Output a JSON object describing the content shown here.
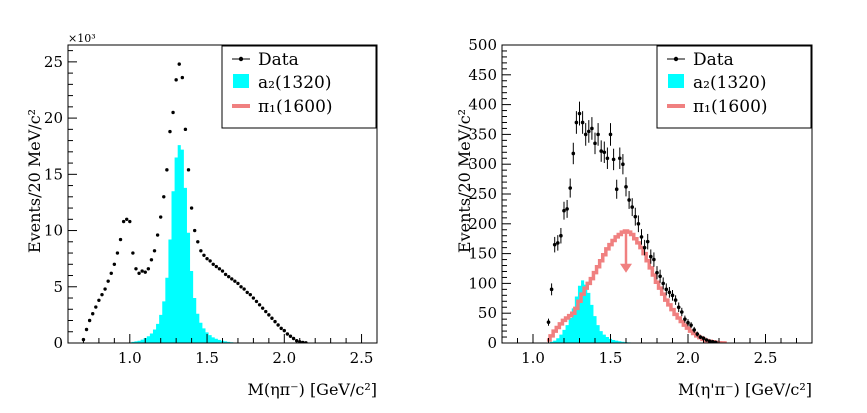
{
  "chart_data": [
    {
      "type": "scatter",
      "xlabel": "M(ηπ⁻) [GeV/c²]",
      "ylabel": "Events/20 MeV/c²",
      "y_multiplier": "×10³",
      "xlim": [
        0.6,
        2.6
      ],
      "ylim": [
        0,
        26.5
      ],
      "x_ticks": [
        "1.0",
        "1.5",
        "2.0",
        "2.5"
      ],
      "y_ticks": [
        "0",
        "5",
        "10",
        "15",
        "20",
        "25"
      ],
      "legend_position": "top-right",
      "legend": {
        "data": "Data",
        "a2": "a₂(1320)",
        "pi1": "π₁(1600)"
      },
      "colors": {
        "data": "#000000",
        "a2": "#00ffff",
        "pi1": "#f08080"
      },
      "series": [
        {
          "name": "Data",
          "style": "points",
          "x": [
            0.7,
            0.72,
            0.74,
            0.76,
            0.78,
            0.8,
            0.82,
            0.84,
            0.86,
            0.88,
            0.9,
            0.92,
            0.94,
            0.96,
            0.98,
            1.0,
            1.02,
            1.04,
            1.06,
            1.08,
            1.1,
            1.12,
            1.14,
            1.16,
            1.18,
            1.2,
            1.22,
            1.24,
            1.26,
            1.28,
            1.3,
            1.32,
            1.34,
            1.36,
            1.38,
            1.4,
            1.42,
            1.44,
            1.46,
            1.48,
            1.5,
            1.52,
            1.54,
            1.56,
            1.58,
            1.6,
            1.62,
            1.64,
            1.66,
            1.68,
            1.7,
            1.72,
            1.74,
            1.76,
            1.78,
            1.8,
            1.82,
            1.84,
            1.86,
            1.88,
            1.9,
            1.92,
            1.94,
            1.96,
            1.98,
            2.0,
            2.02,
            2.04,
            2.06,
            2.08,
            2.1,
            2.12,
            2.14,
            2.16,
            2.18,
            2.2,
            2.22,
            2.24,
            2.26,
            2.28,
            2.3
          ],
          "y": [
            0.3,
            1.2,
            2.0,
            2.6,
            3.2,
            3.8,
            4.3,
            4.8,
            5.5,
            6.2,
            7.0,
            8.0,
            9.2,
            10.8,
            11.0,
            10.8,
            8.0,
            6.6,
            6.2,
            6.4,
            6.3,
            6.6,
            7.4,
            8.2,
            9.6,
            11.2,
            13.0,
            15.4,
            18.8,
            20.5,
            23.4,
            24.8,
            23.6,
            19.0,
            15.4,
            12.0,
            10.0,
            9.0,
            8.2,
            7.8,
            7.5,
            7.3,
            7.0,
            6.8,
            6.6,
            6.4,
            6.1,
            5.9,
            5.7,
            5.5,
            5.3,
            5.0,
            4.8,
            4.5,
            4.3,
            4.0,
            3.7,
            3.4,
            3.1,
            2.8,
            2.5,
            2.2,
            1.9,
            1.6,
            1.3,
            1.1,
            0.8,
            0.6,
            0.4,
            0.2,
            0.1,
            0.05,
            0.02,
            0.0,
            0.0,
            0.0,
            0.0,
            0.0,
            0.0,
            0.0,
            0.0
          ]
        },
        {
          "name": "a₂(1320)",
          "style": "filled-histogram",
          "x": [
            1.0,
            1.02,
            1.04,
            1.06,
            1.08,
            1.1,
            1.12,
            1.14,
            1.16,
            1.18,
            1.2,
            1.22,
            1.24,
            1.26,
            1.28,
            1.3,
            1.32,
            1.34,
            1.36,
            1.38,
            1.4,
            1.42,
            1.44,
            1.46,
            1.48,
            1.5,
            1.52,
            1.54,
            1.56,
            1.58,
            1.6,
            1.62,
            1.64,
            1.66,
            1.68,
            1.7
          ],
          "y": [
            0.05,
            0.1,
            0.15,
            0.2,
            0.3,
            0.45,
            0.6,
            0.85,
            1.2,
            1.7,
            2.5,
            3.7,
            5.8,
            9.2,
            13.5,
            16.5,
            17.6,
            17.2,
            13.8,
            9.8,
            6.4,
            4.0,
            2.6,
            1.8,
            1.3,
            0.95,
            0.7,
            0.5,
            0.38,
            0.28,
            0.2,
            0.15,
            0.1,
            0.07,
            0.05,
            0.03
          ]
        }
      ]
    },
    {
      "type": "scatter",
      "xlabel": "M(η'π⁻) [GeV/c²]",
      "ylabel": "Events/20 MeV/c²",
      "xlim": [
        0.8,
        2.8
      ],
      "ylim": [
        0,
        500
      ],
      "x_ticks": [
        "1.0",
        "1.5",
        "2.0",
        "2.5"
      ],
      "y_ticks": [
        "0",
        "50",
        "100",
        "150",
        "200",
        "250",
        "300",
        "350",
        "400",
        "450",
        "500"
      ],
      "legend_position": "top-right",
      "legend": {
        "data": "Data",
        "a2": "a₂(1320)",
        "pi1": "π₁(1600)"
      },
      "colors": {
        "data": "#000000",
        "a2": "#00ffff",
        "pi1": "#f08080"
      },
      "arrow_at": {
        "x": 1.6,
        "y_from": 185,
        "y_to": 170
      },
      "series": [
        {
          "name": "Data",
          "style": "points-with-errors",
          "x": [
            1.1,
            1.12,
            1.14,
            1.16,
            1.18,
            1.2,
            1.22,
            1.24,
            1.26,
            1.28,
            1.3,
            1.32,
            1.34,
            1.36,
            1.38,
            1.4,
            1.42,
            1.44,
            1.46,
            1.48,
            1.5,
            1.52,
            1.54,
            1.56,
            1.58,
            1.6,
            1.62,
            1.64,
            1.66,
            1.68,
            1.7,
            1.72,
            1.74,
            1.76,
            1.78,
            1.8,
            1.82,
            1.84,
            1.86,
            1.88,
            1.9,
            1.92,
            1.94,
            1.96,
            1.98,
            2.0,
            2.02,
            2.04,
            2.06,
            2.08,
            2.1,
            2.12,
            2.14,
            2.16,
            2.18
          ],
          "y": [
            35,
            90,
            165,
            168,
            180,
            222,
            225,
            260,
            318,
            370,
            385,
            370,
            350,
            355,
            360,
            335,
            350,
            322,
            320,
            310,
            350,
            308,
            258,
            310,
            300,
            262,
            240,
            228,
            212,
            200,
            178,
            160,
            170,
            145,
            140,
            118,
            112,
            100,
            90,
            85,
            80,
            72,
            60,
            52,
            40,
            34,
            30,
            22,
            15,
            10,
            8,
            5,
            3,
            2,
            1
          ],
          "err": [
            6,
            10,
            13,
            13,
            13,
            15,
            15,
            16,
            18,
            19,
            20,
            19,
            19,
            19,
            19,
            18,
            19,
            18,
            18,
            18,
            19,
            18,
            16,
            18,
            17,
            16,
            15,
            15,
            15,
            14,
            13,
            13,
            13,
            12,
            12,
            11,
            11,
            10,
            10,
            9,
            9,
            8,
            8,
            7,
            6,
            6,
            5,
            5,
            4,
            3,
            3,
            2,
            2,
            1,
            1
          ]
        },
        {
          "name": "a₂(1320)",
          "style": "filled-histogram",
          "x": [
            1.12,
            1.14,
            1.16,
            1.18,
            1.2,
            1.22,
            1.24,
            1.26,
            1.28,
            1.3,
            1.32,
            1.34,
            1.36,
            1.38,
            1.4,
            1.42,
            1.44,
            1.46,
            1.48,
            1.5,
            1.52,
            1.54,
            1.56,
            1.58,
            1.6,
            1.62,
            1.64,
            1.66,
            1.68
          ],
          "y": [
            2,
            4,
            8,
            14,
            22,
            30,
            42,
            58,
            78,
            96,
            105,
            98,
            84,
            64,
            45,
            30,
            20,
            14,
            10,
            7,
            5,
            4,
            3,
            2,
            1.5,
            1,
            0.8,
            0.5,
            0.3
          ]
        },
        {
          "name": "π₁(1600)",
          "style": "line-histogram",
          "x": [
            1.1,
            1.12,
            1.14,
            1.16,
            1.18,
            1.2,
            1.22,
            1.24,
            1.26,
            1.28,
            1.3,
            1.32,
            1.34,
            1.36,
            1.38,
            1.4,
            1.42,
            1.44,
            1.46,
            1.48,
            1.5,
            1.52,
            1.54,
            1.56,
            1.58,
            1.6,
            1.62,
            1.64,
            1.66,
            1.68,
            1.7,
            1.72,
            1.74,
            1.76,
            1.78,
            1.8,
            1.82,
            1.84,
            1.86,
            1.88,
            1.9,
            1.92,
            1.94,
            1.96,
            1.98,
            2.0,
            2.02,
            2.04,
            2.06,
            2.08,
            2.1,
            2.12,
            2.14,
            2.16,
            2.18,
            2.2,
            2.22,
            2.24
          ],
          "y": [
            5,
            12,
            20,
            26,
            32,
            38,
            42,
            46,
            50,
            58,
            70,
            82,
            92,
            100,
            108,
            118,
            128,
            138,
            148,
            158,
            165,
            172,
            178,
            182,
            186,
            188,
            186,
            182,
            175,
            168,
            160,
            150,
            138,
            126,
            114,
            102,
            92,
            82,
            72,
            64,
            56,
            48,
            42,
            36,
            30,
            25,
            20,
            16,
            12,
            9,
            6,
            4,
            3,
            2,
            1,
            0.5,
            0.2,
            0
          ]
        }
      ]
    }
  ]
}
